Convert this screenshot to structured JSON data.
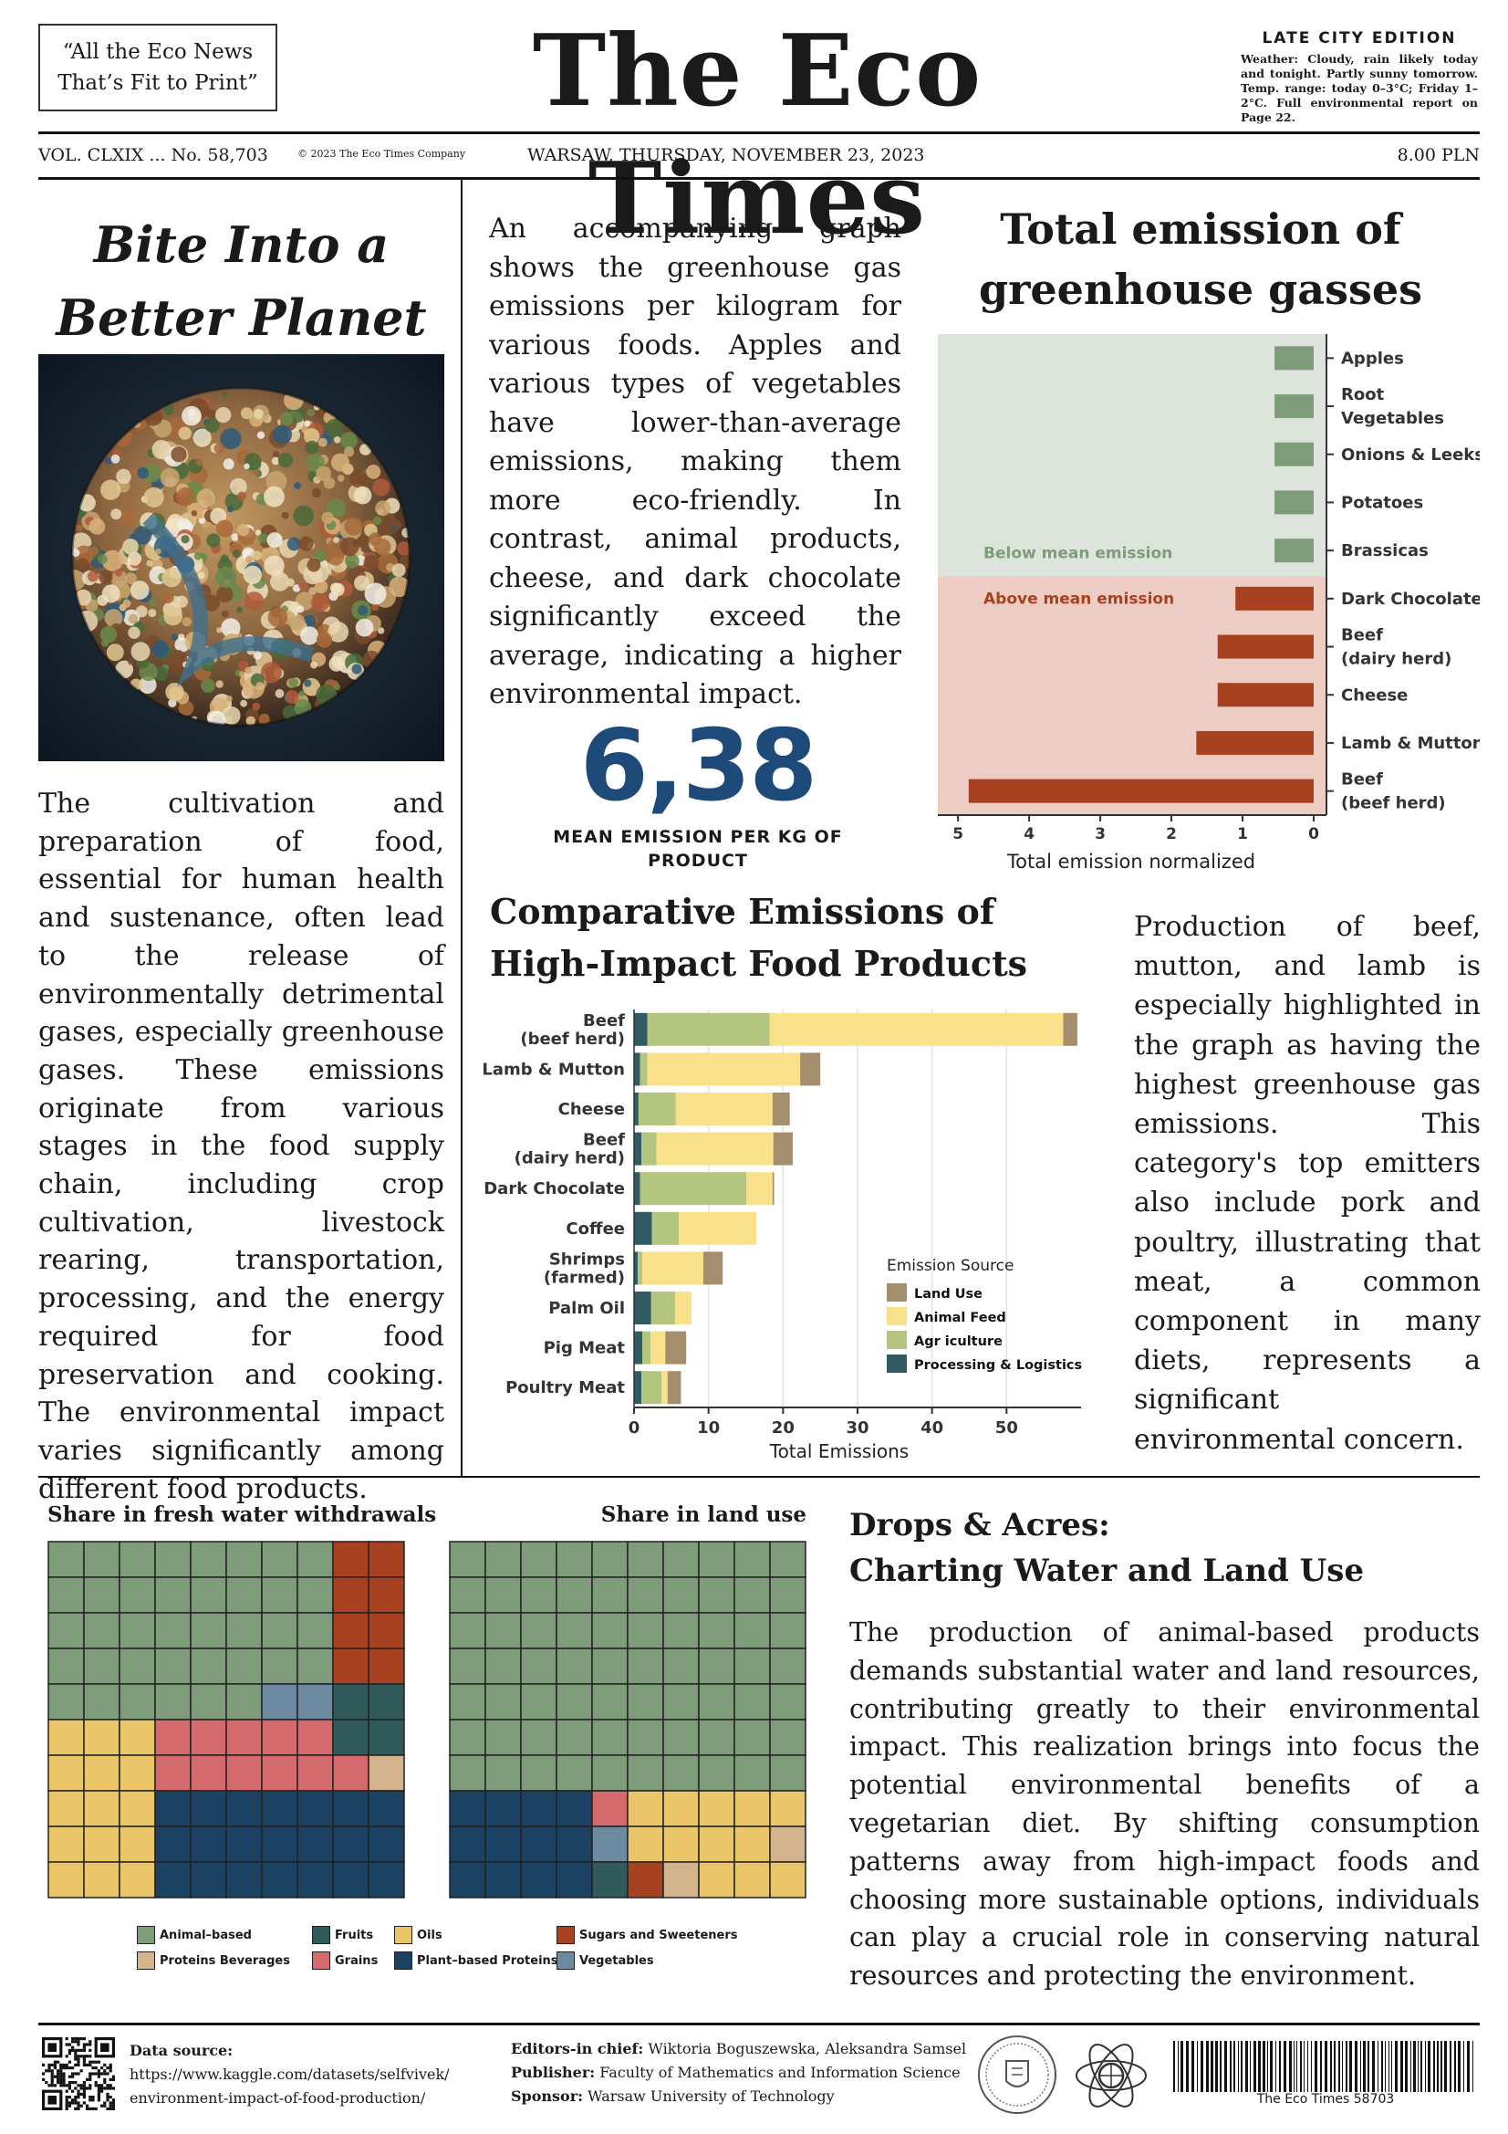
{
  "header": {
    "slogan_line1": "“All the Eco News",
    "slogan_line2": "That’s Fit to Print”",
    "title": "The Eco Times",
    "edition": "LATE CITY EDITION",
    "weather": "Weather: Cloudy, rain likely today and tonight. Partly sunny tomorrow. Temp. range: today 0–3°C; Friday 1–2°C. Full environmental report on Page 22.",
    "volume": "VOL. CLXIX ... No. 58,703",
    "copyright": "© 2023 The Eco Times Company",
    "date": "WARSAW, THURSDAY, NOVEMBER 23, 2023",
    "price": "8.00 PLN"
  },
  "left_article": {
    "headline_line1": "Bite Into a",
    "headline_line2": "Better Planet",
    "body": "The cultivation and preparation of food, essential for human health and sustenance, often lead to the release of environmentally detrimental gases, especially greenhouse gases. These emissions originate from various stages in the food supply chain, including crop cultivation, livestock rearing, transportation, processing, and the energy required for food preservation and cooking. The environmental impact varies significantly among different food products."
  },
  "middle_article": {
    "body": "An accompanying graph shows the greenhouse gas emissions per kilogram for various foods. Apples and various types of vegetables have lower-than-average emissions, making them more eco-friendly. In contrast, animal products, cheese, and dark chocolate significantly exceed the average, indicating a higher environmental impact.",
    "mean_value": "6,38",
    "mean_caption_line1": "MEAN EMISSION PER KG OF",
    "mean_caption_line2": "PRODUCT"
  },
  "total_chart": {
    "title_line1": "Total emission of",
    "title_line2": "greenhouse gasses",
    "below_label": "Below mean emission",
    "above_label": "Above mean emission",
    "xlabel": "Total emission normalized",
    "colors": {
      "below_bg": "#dde4dc",
      "above_bg": "#ecccc3",
      "below_bar": "#7f9c7a",
      "above_bar": "#a8411f"
    }
  },
  "comparative_chart": {
    "title_line1": "Comparative Emissions of",
    "title_line2": "High-Impact Food Products",
    "xlabel": "Total Emissions",
    "legend_title": "Emission Source",
    "legend": [
      "Land Use",
      "Animal Feed",
      "Agr iculture",
      "Processing & Logistics"
    ],
    "colors": {
      "land": "#a58e6e",
      "feed": "#f9e08a",
      "agri": "#b3c57f",
      "proc": "#315a62"
    }
  },
  "right_article": {
    "body": "Production of beef, mutton, and lamb is especially highlighted in the graph as having the highest greenhouse gas emissions. This category's top emitters also include pork and poultry, illustrating that meat, a common component in many diets, represents a significant environmental concern."
  },
  "waffle": {
    "water_title": "Share in fresh water withdrawals",
    "land_title": "Share in land use",
    "legend": [
      {
        "label": "Animal–based",
        "color": "#7f9c7a"
      },
      {
        "label": "Proteins Beverages",
        "color": "#d4b48c"
      },
      {
        "label": "Fruits",
        "color": "#315a5a"
      },
      {
        "label": "Grains",
        "color": "#d4696e"
      },
      {
        "label": "Oils",
        "color": "#eac668"
      },
      {
        "label": "Plant–based Proteins",
        "color": "#1b4262"
      },
      {
        "label": "Sugars and Sweeteners",
        "color": "#a8411f"
      },
      {
        "label": "Vegetables",
        "color": "#6c8aa0"
      }
    ]
  },
  "drops_article": {
    "title_line1": "Drops & Acres:",
    "title_line2": "Charting Water and Land Use",
    "body": "The production of animal-based products demands substantial water and land resources, contributing greatly to their environmental impact. This realization brings into focus the potential environmental benefits of a vegetarian diet. By shifting consumption patterns away from high-impact foods and choosing more sustainable options, individuals can play a crucial role in conserving natural resources and protecting the environment."
  },
  "footer": {
    "data_source_label": "Data source:",
    "data_source_line1": "https://www.kaggle.com/datasets/selfvivek/",
    "data_source_line2": "environment-impact-of-food-production/",
    "editors_label": "Editors-in chief:",
    "editors": "Wiktoria Boguszewska, Aleksandra Samsel",
    "publisher_label": "Publisher:",
    "publisher": "Faculty of Mathematics and Information Science",
    "sponsor_label": "Sponsor:",
    "sponsor": "Warsaw University of Technology",
    "barcode_text": "The Eco Times 58703"
  },
  "chart_data": [
    {
      "type": "bar",
      "orientation": "horizontal",
      "title": "Total emission of greenhouse gasses",
      "xlabel": "Total emission normalized",
      "xlim": [
        5,
        0
      ],
      "xticks": [
        5,
        4,
        3,
        2,
        1,
        0
      ],
      "categories": [
        "Apples",
        "Root Vegetables",
        "Onions & Leeks",
        "Potatoes",
        "Brassicas",
        "Dark Chocolate",
        "Beef (dairy herd)",
        "Cheese",
        "Lamb & Mutton",
        "Beef (beef herd)"
      ],
      "category_lines": [
        [
          "Apples"
        ],
        [
          "Root",
          "Vegetables"
        ],
        [
          "Onions & Leeks"
        ],
        [
          "Potatoes"
        ],
        [
          "Brassicas"
        ],
        [
          "Dark Chocolate"
        ],
        [
          "Beef",
          "(dairy herd)"
        ],
        [
          "Cheese"
        ],
        [
          "Lamb & Mutton"
        ],
        [
          "Beef",
          "(beef herd)"
        ]
      ],
      "values": [
        0.55,
        0.55,
        0.55,
        0.55,
        0.55,
        1.1,
        1.35,
        1.35,
        1.65,
        4.85
      ],
      "groups": [
        "below",
        "below",
        "below",
        "below",
        "below",
        "above",
        "above",
        "above",
        "above",
        "above"
      ]
    },
    {
      "type": "bar",
      "orientation": "horizontal",
      "stacked": true,
      "title": "Comparative Emissions of High-Impact Food Products",
      "xlabel": "Total Emissions",
      "xlim": [
        0,
        60
      ],
      "xticks": [
        0,
        10,
        20,
        30,
        40,
        50
      ],
      "categories": [
        "Beef (beef herd)",
        "Lamb & Mutton",
        "Cheese",
        "Beef (dairy herd)",
        "Dark Chocolate",
        "Coffee",
        "Shrimps (farmed)",
        "Palm Oil",
        "Pig Meat",
        "Poultry Meat"
      ],
      "category_lines": [
        [
          "Beef",
          "(beef herd)"
        ],
        [
          "Lamb & Mutton"
        ],
        [
          "Cheese"
        ],
        [
          "Beef",
          "(dairy herd)"
        ],
        [
          "Dark Chocolate"
        ],
        [
          "Coffee"
        ],
        [
          "Shrimps",
          "(farmed)"
        ],
        [
          "Palm Oil"
        ],
        [
          "Pig Meat"
        ],
        [
          "Poultry Meat"
        ]
      ],
      "series": [
        {
          "name": "Processing & Logistics",
          "values": [
            1.8,
            0.8,
            0.6,
            1.0,
            0.8,
            2.4,
            0.5,
            2.3,
            1.1,
            1.0
          ]
        },
        {
          "name": "Agr iculture",
          "values": [
            16.4,
            1.0,
            5.0,
            2.0,
            14.3,
            3.6,
            0.6,
            3.2,
            1.1,
            2.7
          ]
        },
        {
          "name": "Animal Feed",
          "values": [
            39.4,
            20.5,
            13.0,
            15.7,
            3.5,
            10.4,
            8.2,
            2.2,
            2.0,
            0.8
          ]
        },
        {
          "name": "Land Use",
          "values": [
            1.9,
            2.7,
            2.3,
            2.6,
            0.2,
            0.0,
            2.6,
            0.0,
            2.8,
            1.8
          ]
        }
      ]
    },
    {
      "type": "waffle",
      "title": "Share in fresh water withdrawals",
      "grid": [
        10,
        10
      ],
      "cells_by_category": {
        "Animal–based": 45,
        "Sugars and Sweeteners": 10,
        "Vegetables": 2,
        "Fruits": 4,
        "Oils": 12,
        "Grains": 11,
        "Proteins Beverages": 1,
        "Plant–based Proteins": 15
      }
    },
    {
      "type": "waffle",
      "title": "Share in land use",
      "grid": [
        10,
        10
      ],
      "cells_by_category": {
        "Animal–based": 73,
        "Grains": 1,
        "Oils": 9,
        "Plant–based Proteins": 12,
        "Vegetables": 1,
        "Proteins Beverages": 2,
        "Fruits": 1,
        "Sugars and Sweeteners": 1
      }
    }
  ]
}
